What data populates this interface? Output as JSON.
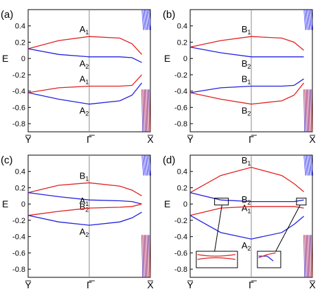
{
  "panels": [
    {
      "label": "(a)",
      "bands": [
        {
          "name": "A",
          "sub": "1",
          "color": "#e02020"
        },
        {
          "name": "A",
          "sub": "2",
          "color": "#2020e0"
        },
        {
          "name": "A",
          "sub": "1",
          "color": "#e02020"
        },
        {
          "name": "A",
          "sub": "2",
          "color": "#2020e0"
        }
      ],
      "insets": false
    },
    {
      "label": "(b)",
      "bands": [
        {
          "name": "B",
          "sub": "1",
          "color": "#e02020"
        },
        {
          "name": "B",
          "sub": "2",
          "color": "#2020e0"
        },
        {
          "name": "B",
          "sub": "1",
          "color": "#2020e0"
        },
        {
          "name": "B",
          "sub": "2",
          "color": "#e02020"
        }
      ],
      "insets": false
    },
    {
      "label": "(c)",
      "bands": [
        {
          "name": "B",
          "sub": "1",
          "color": "#e02020"
        },
        {
          "name": "B",
          "sub": "2",
          "color": "#2020e0"
        },
        {
          "name": "A",
          "sub": "1",
          "color": "#e02020"
        },
        {
          "name": "A",
          "sub": "2",
          "color": "#2020e0"
        }
      ],
      "insets": false
    },
    {
      "label": "(d)",
      "bands": [
        {
          "name": "B",
          "sub": "1",
          "color": "#e02020"
        },
        {
          "name": "A",
          "sub": "1",
          "color": "#2020e0"
        },
        {
          "name": "B",
          "sub": "2",
          "color": "#e02020"
        },
        {
          "name": "A",
          "sub": "2",
          "color": "#2020e0"
        }
      ],
      "insets": true
    }
  ],
  "axis": {
    "ylabel": "E",
    "yticks": [
      "0.4",
      "0.2",
      "0",
      "-0.2",
      "-0.4",
      "-0.6",
      "-0.8"
    ],
    "xticks": [
      "Y̅",
      "Γ̅",
      "X̅"
    ]
  },
  "chart_data": [
    {
      "type": "line",
      "title": "(a)",
      "ylabel": "E",
      "ylim": [
        -0.9,
        0.6
      ],
      "x": [
        0,
        0.25,
        0.5,
        0.75,
        0.85,
        0.93
      ],
      "xtick_labels": [
        "Y̅",
        "Γ̅",
        "X̅"
      ],
      "series": [
        {
          "name": "A1",
          "values": [
            0.12,
            0.22,
            0.27,
            0.25,
            0.18,
            0.05
          ]
        },
        {
          "name": "A2",
          "values": [
            0.12,
            0.05,
            0.02,
            0.02,
            0.01,
            -0.05
          ]
        },
        {
          "name": "A1",
          "values": [
            -0.42,
            -0.36,
            -0.34,
            -0.34,
            -0.33,
            -0.2
          ]
        },
        {
          "name": "A2",
          "values": [
            -0.42,
            -0.5,
            -0.56,
            -0.52,
            -0.45,
            -0.3
          ]
        }
      ]
    },
    {
      "type": "line",
      "title": "(b)",
      "ylabel": "E",
      "ylim": [
        -0.9,
        0.6
      ],
      "x": [
        0,
        0.25,
        0.5,
        0.75,
        0.85,
        0.93
      ],
      "xtick_labels": [
        "Y̅",
        "Γ̅",
        "X̅"
      ],
      "series": [
        {
          "name": "B1",
          "values": [
            0.14,
            0.22,
            0.27,
            0.25,
            0.2,
            0.1
          ]
        },
        {
          "name": "B2",
          "values": [
            0.14,
            0.07,
            0.02,
            0.02,
            0.02,
            0.02
          ]
        },
        {
          "name": "B1",
          "values": [
            -0.42,
            -0.36,
            -0.34,
            -0.34,
            -0.33,
            -0.25
          ]
        },
        {
          "name": "B2",
          "values": [
            -0.42,
            -0.5,
            -0.56,
            -0.52,
            -0.45,
            -0.3
          ]
        }
      ]
    },
    {
      "type": "line",
      "title": "(c)",
      "ylabel": "E",
      "ylim": [
        -0.9,
        0.6
      ],
      "x": [
        0,
        0.25,
        0.5,
        0.75,
        0.85,
        0.93
      ],
      "xtick_labels": [
        "Y̅",
        "Γ̅",
        "X̅"
      ],
      "series": [
        {
          "name": "B1",
          "values": [
            0.14,
            0.23,
            0.26,
            0.22,
            0.17,
            0.1
          ]
        },
        {
          "name": "B2",
          "values": [
            0.14,
            0.09,
            0.05,
            0.04,
            0.03,
            0.0
          ]
        },
        {
          "name": "A1",
          "values": [
            -0.14,
            -0.09,
            -0.05,
            -0.04,
            -0.03,
            0.0
          ]
        },
        {
          "name": "A2",
          "values": [
            -0.14,
            -0.22,
            -0.26,
            -0.22,
            -0.17,
            -0.1
          ]
        }
      ]
    },
    {
      "type": "line",
      "title": "(d)",
      "ylabel": "E",
      "ylim": [
        -0.9,
        0.6
      ],
      "x": [
        0,
        0.25,
        0.5,
        0.75,
        0.85,
        0.93
      ],
      "xtick_labels": [
        "Y̅",
        "Γ̅",
        "X̅"
      ],
      "series": [
        {
          "name": "B1",
          "values": [
            0.14,
            0.35,
            0.45,
            0.35,
            0.25,
            0.15
          ]
        },
        {
          "name": "A1",
          "values": [
            0.14,
            0.05,
            0.03,
            0.03,
            0.03,
            0.05
          ]
        },
        {
          "name": "B2",
          "values": [
            -0.14,
            -0.05,
            -0.03,
            -0.03,
            -0.03,
            -0.05
          ]
        },
        {
          "name": "A2",
          "values": [
            -0.14,
            -0.35,
            -0.43,
            -0.35,
            -0.25,
            -0.15
          ]
        }
      ]
    }
  ]
}
